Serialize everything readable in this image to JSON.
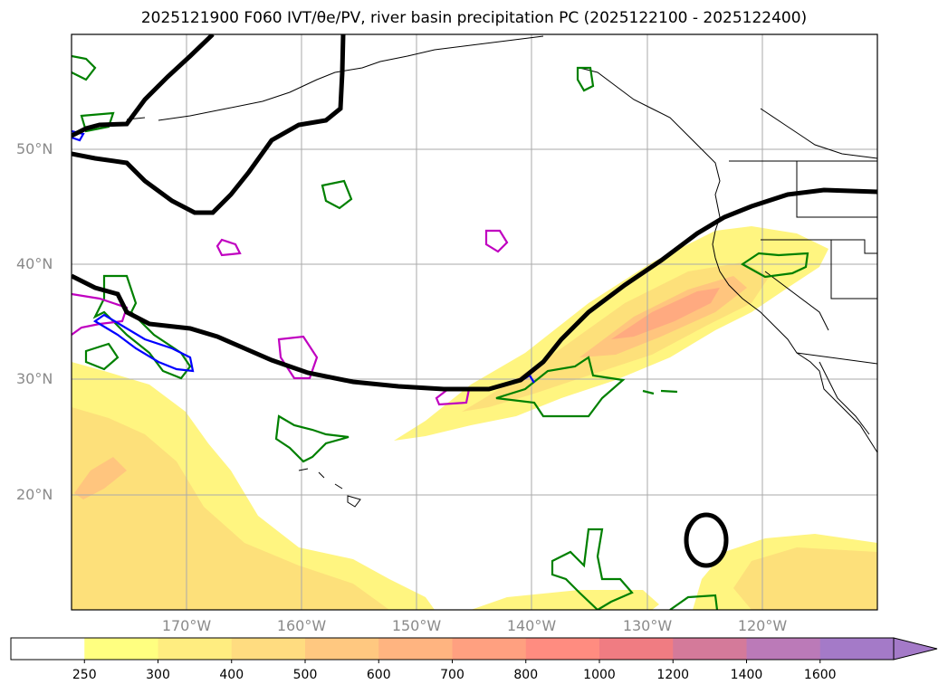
{
  "title": "2025121900 F060 IVT/θe/PV, river basin precipitation PC (2025122100 - 2025122400)",
  "lat_labels": [
    "50°N",
    "40°N",
    "30°N",
    "20°N"
  ],
  "lon_labels": [
    "170°W",
    "160°W",
    "150°W",
    "140°W",
    "130°W",
    "120°W"
  ],
  "colorbar": {
    "labels": [
      "250",
      "300",
      "400",
      "500",
      "600",
      "700",
      "800",
      "1000",
      "1200",
      "1400",
      "1600"
    ],
    "colors": [
      "#ffffff",
      "#ffff80",
      "#ffed80",
      "#ffdc80",
      "#ffc880",
      "#ffb480",
      "#ffa080",
      "#ff8c80",
      "#f07c82",
      "#d47a9a",
      "#bb7ab8",
      "#a47ac8"
    ]
  },
  "colors": {
    "ivt_fill_1": "#fff580",
    "ivt_fill_2": "#fde07a",
    "ivt_fill_3": "#ffc57e",
    "ivt_fill_4": "#ffaa80",
    "theta_contour": "#000000",
    "precip_green": "#008000",
    "precip_magenta": "#c000c0",
    "precip_blue": "#0000ff",
    "grid": "#aaaaaa"
  }
}
